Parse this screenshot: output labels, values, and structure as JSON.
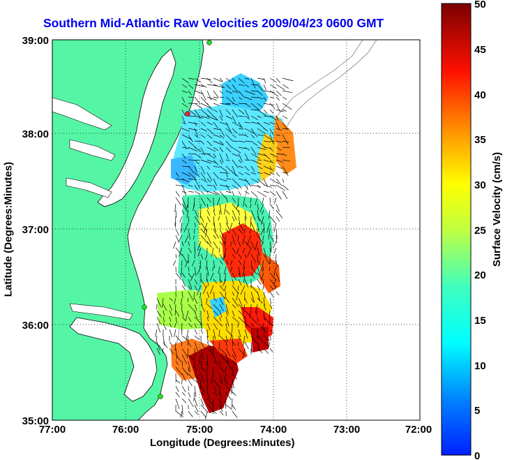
{
  "title": "Southern Mid-Atlantic Raw Velocities 2009/04/23 0600 GMT",
  "axes": {
    "xlabel": "Longitude (Degrees:Minutes)",
    "ylabel": "Latitude (Degrees:Minutes)",
    "x_ticks": [
      "77:00",
      "76:00",
      "75:00",
      "74:00",
      "73:00",
      "72:00"
    ],
    "y_ticks": [
      "39:00",
      "38:00",
      "37:00",
      "36:00",
      "35:00"
    ],
    "xlim": [
      -77,
      -72
    ],
    "ylim": [
      35,
      39
    ]
  },
  "colorbar": {
    "label": "Surface Velocity (cm/s)",
    "ticks": [
      "50",
      "45",
      "40",
      "35",
      "30",
      "25",
      "20",
      "15",
      "10",
      "5",
      "0"
    ],
    "range": [
      0,
      50
    ]
  },
  "colors": {
    "land": "#55f5a6",
    "title": "#0000ee",
    "station": "#22dd22",
    "station_red": "#ee2222"
  }
}
